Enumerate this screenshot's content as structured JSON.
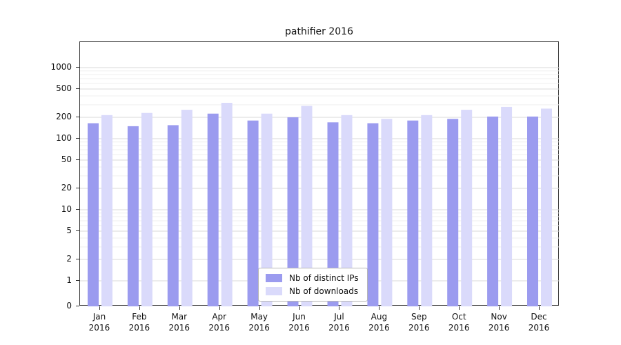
{
  "chart_data": {
    "type": "bar",
    "title": "pathifier 2016",
    "categories": [
      "Jan 2016",
      "Feb 2016",
      "Mar 2016",
      "Apr 2016",
      "May 2016",
      "Jun 2016",
      "Jul 2016",
      "Aug 2016",
      "Sep 2016",
      "Oct 2016",
      "Nov 2016",
      "Dec 2016"
    ],
    "series": [
      {
        "name": "Nb of distinct IPs",
        "color": "#9b9bef",
        "values": [
          165,
          150,
          155,
          225,
          180,
          200,
          170,
          165,
          180,
          190,
          205,
          205
        ]
      },
      {
        "name": "Nb of downloads",
        "color": "#dadafb",
        "values": [
          215,
          230,
          255,
          320,
          225,
          290,
          215,
          190,
          215,
          255,
          280,
          265
        ]
      }
    ],
    "y_axis": {
      "scale": "symlog",
      "ticks": [
        0,
        1,
        2,
        5,
        10,
        20,
        50,
        100,
        200,
        500,
        1000
      ],
      "minor_multipliers": [
        3,
        4,
        6,
        7,
        8,
        9
      ],
      "ylim": [
        0,
        1000
      ]
    },
    "x_axis": {
      "label": "",
      "tick_line2": "2016"
    },
    "grid": true,
    "legend": {
      "position": "lower center"
    },
    "colors": {
      "major_grid": "#d9d9d9",
      "minor_grid": "#efefef",
      "axis": "#333333"
    }
  }
}
